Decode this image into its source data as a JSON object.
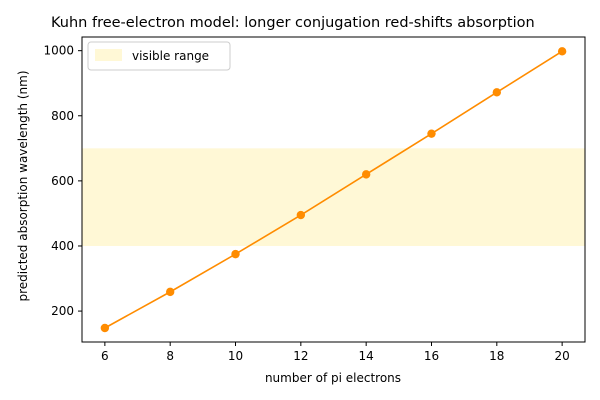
{
  "chart_data": {
    "type": "line",
    "title": "Kuhn free-electron model: longer conjugation red-shifts absorption",
    "xlabel": "number of pi electrons",
    "ylabel": "predicted absorption wavelength (nm)",
    "x": [
      6,
      8,
      10,
      12,
      14,
      16,
      18,
      20
    ],
    "series": [
      {
        "values": [
          148,
          259,
          375,
          495,
          620,
          745,
          872,
          998
        ],
        "color": "#ff8c00"
      }
    ],
    "xlim": [
      5.3,
      20.7
    ],
    "ylim": [
      105,
      1042
    ],
    "xticks": [
      6,
      8,
      10,
      12,
      14,
      16,
      18,
      20
    ],
    "yticks": [
      200,
      400,
      600,
      800,
      1000
    ],
    "band": {
      "label": "visible range",
      "y_from": 400,
      "y_to": 700,
      "color": "#fff8d6"
    },
    "legend": {
      "placement": "top-left"
    },
    "grid": false
  }
}
